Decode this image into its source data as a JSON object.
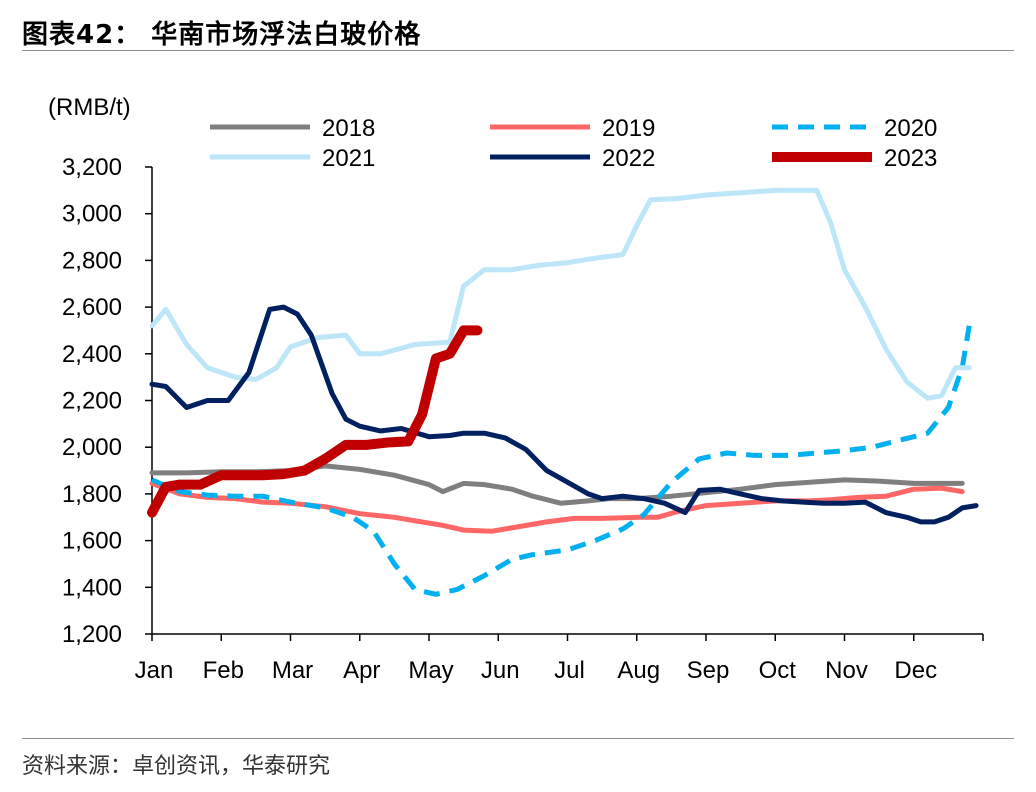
{
  "title": "图表42： 华南市场浮法白玻价格",
  "source": "资料来源：卓创资讯，华泰研究",
  "chart_data": {
    "type": "line",
    "unit_label": "(RMB/t)",
    "ylim": [
      1200,
      3200
    ],
    "yticks": [
      "1,200",
      "1,400",
      "1,600",
      "1,800",
      "2,000",
      "2,200",
      "2,400",
      "2,600",
      "2,800",
      "3,000",
      "3,200"
    ],
    "ytick_values": [
      1200,
      1400,
      1600,
      1800,
      2000,
      2200,
      2400,
      2600,
      2800,
      3000,
      3200
    ],
    "months": [
      "Jan",
      "Feb",
      "Mar",
      "Apr",
      "May",
      "Jun",
      "Jul",
      "Aug",
      "Sep",
      "Oct",
      "Nov",
      "Dec"
    ],
    "legend_position": "top",
    "series": [
      {
        "name": "2018",
        "color": "#7f7f7f",
        "width": 5,
        "dash": "",
        "points": [
          [
            0,
            1890
          ],
          [
            0.5,
            1890
          ],
          [
            1,
            1895
          ],
          [
            1.5,
            1895
          ],
          [
            2,
            1900
          ],
          [
            2.5,
            1920
          ],
          [
            3,
            1905
          ],
          [
            3.5,
            1880
          ],
          [
            4,
            1840
          ],
          [
            4.2,
            1810
          ],
          [
            4.5,
            1845
          ],
          [
            4.8,
            1840
          ],
          [
            5.2,
            1820
          ],
          [
            5.5,
            1790
          ],
          [
            5.9,
            1760
          ],
          [
            6.3,
            1770
          ],
          [
            6.6,
            1780
          ],
          [
            7,
            1780
          ],
          [
            7.5,
            1790
          ],
          [
            8,
            1805
          ],
          [
            8.5,
            1820
          ],
          [
            9,
            1840
          ],
          [
            9.5,
            1850
          ],
          [
            10,
            1860
          ],
          [
            10.5,
            1855
          ],
          [
            11,
            1845
          ],
          [
            11.7,
            1845
          ]
        ]
      },
      {
        "name": "2019",
        "color": "#ff6666",
        "width": 5,
        "dash": "",
        "points": [
          [
            0,
            1845
          ],
          [
            0.4,
            1800
          ],
          [
            0.8,
            1785
          ],
          [
            1.2,
            1780
          ],
          [
            1.6,
            1765
          ],
          [
            2,
            1760
          ],
          [
            2.5,
            1745
          ],
          [
            3,
            1715
          ],
          [
            3.5,
            1700
          ],
          [
            3.8,
            1685
          ],
          [
            4.2,
            1665
          ],
          [
            4.5,
            1645
          ],
          [
            4.9,
            1640
          ],
          [
            5.3,
            1660
          ],
          [
            5.7,
            1680
          ],
          [
            6.1,
            1695
          ],
          [
            6.5,
            1695
          ],
          [
            7,
            1700
          ],
          [
            7.3,
            1700
          ],
          [
            7.6,
            1725
          ],
          [
            8,
            1750
          ],
          [
            8.5,
            1760
          ],
          [
            9,
            1770
          ],
          [
            9.5,
            1770
          ],
          [
            9.8,
            1775
          ],
          [
            10.2,
            1785
          ],
          [
            10.6,
            1790
          ],
          [
            11,
            1820
          ],
          [
            11.4,
            1825
          ],
          [
            11.7,
            1810
          ]
        ]
      },
      {
        "name": "2020",
        "color": "#00b0f0",
        "width": 5,
        "dash": "16,10",
        "points": [
          [
            0,
            1860
          ],
          [
            0.4,
            1810
          ],
          [
            0.8,
            1795
          ],
          [
            1.2,
            1790
          ],
          [
            1.6,
            1790
          ],
          [
            2,
            1765
          ],
          [
            2.5,
            1740
          ],
          [
            2.9,
            1700
          ],
          [
            3.2,
            1640
          ],
          [
            3.5,
            1500
          ],
          [
            3.8,
            1390
          ],
          [
            4.1,
            1370
          ],
          [
            4.4,
            1390
          ],
          [
            4.8,
            1450
          ],
          [
            5.2,
            1520
          ],
          [
            5.5,
            1540
          ],
          [
            6,
            1560
          ],
          [
            6.4,
            1600
          ],
          [
            6.8,
            1650
          ],
          [
            7.1,
            1710
          ],
          [
            7.5,
            1850
          ],
          [
            7.9,
            1950
          ],
          [
            8.3,
            1975
          ],
          [
            8.7,
            1965
          ],
          [
            9.2,
            1965
          ],
          [
            9.6,
            1975
          ],
          [
            10,
            1985
          ],
          [
            10.4,
            2000
          ],
          [
            10.8,
            2030
          ],
          [
            11.2,
            2060
          ],
          [
            11.5,
            2170
          ],
          [
            11.7,
            2340
          ],
          [
            11.8,
            2520
          ]
        ]
      },
      {
        "name": "2021",
        "color": "#bde7f8",
        "width": 5,
        "dash": "",
        "points": [
          [
            0,
            2520
          ],
          [
            0.2,
            2590
          ],
          [
            0.5,
            2440
          ],
          [
            0.8,
            2340
          ],
          [
            1.2,
            2300
          ],
          [
            1.5,
            2290
          ],
          [
            1.8,
            2340
          ],
          [
            2,
            2430
          ],
          [
            2.4,
            2470
          ],
          [
            2.8,
            2480
          ],
          [
            3,
            2400
          ],
          [
            3.3,
            2400
          ],
          [
            3.8,
            2440
          ],
          [
            4.3,
            2450
          ],
          [
            4.5,
            2690
          ],
          [
            4.8,
            2760
          ],
          [
            5.2,
            2760
          ],
          [
            5.6,
            2780
          ],
          [
            6,
            2790
          ],
          [
            6.4,
            2810
          ],
          [
            6.8,
            2825
          ],
          [
            7,
            2950
          ],
          [
            7.2,
            3060
          ],
          [
            7.6,
            3065
          ],
          [
            8,
            3080
          ],
          [
            8.5,
            3090
          ],
          [
            9,
            3100
          ],
          [
            9.4,
            3100
          ],
          [
            9.6,
            3100
          ],
          [
            9.8,
            2960
          ],
          [
            10,
            2760
          ],
          [
            10.3,
            2600
          ],
          [
            10.6,
            2420
          ],
          [
            10.9,
            2280
          ],
          [
            11.2,
            2210
          ],
          [
            11.4,
            2220
          ],
          [
            11.6,
            2340
          ],
          [
            11.8,
            2340
          ]
        ]
      },
      {
        "name": "2022",
        "color": "#002060",
        "width": 5,
        "dash": "",
        "points": [
          [
            0,
            2270
          ],
          [
            0.2,
            2260
          ],
          [
            0.5,
            2170
          ],
          [
            0.8,
            2200
          ],
          [
            1.1,
            2200
          ],
          [
            1.4,
            2320
          ],
          [
            1.7,
            2590
          ],
          [
            1.9,
            2600
          ],
          [
            2.1,
            2570
          ],
          [
            2.3,
            2480
          ],
          [
            2.6,
            2230
          ],
          [
            2.8,
            2120
          ],
          [
            3,
            2090
          ],
          [
            3.3,
            2070
          ],
          [
            3.6,
            2080
          ],
          [
            4,
            2045
          ],
          [
            4.3,
            2050
          ],
          [
            4.5,
            2060
          ],
          [
            4.8,
            2060
          ],
          [
            5.1,
            2040
          ],
          [
            5.4,
            1990
          ],
          [
            5.7,
            1900
          ],
          [
            6,
            1850
          ],
          [
            6.3,
            1800
          ],
          [
            6.5,
            1780
          ],
          [
            6.8,
            1790
          ],
          [
            7.1,
            1780
          ],
          [
            7.4,
            1760
          ],
          [
            7.7,
            1720
          ],
          [
            7.9,
            1815
          ],
          [
            8.2,
            1820
          ],
          [
            8.5,
            1800
          ],
          [
            8.8,
            1780
          ],
          [
            9.1,
            1770
          ],
          [
            9.4,
            1765
          ],
          [
            9.7,
            1760
          ],
          [
            10,
            1760
          ],
          [
            10.3,
            1765
          ],
          [
            10.6,
            1720
          ],
          [
            10.9,
            1700
          ],
          [
            11.1,
            1680
          ],
          [
            11.3,
            1680
          ],
          [
            11.5,
            1700
          ],
          [
            11.7,
            1740
          ],
          [
            11.9,
            1750
          ]
        ]
      },
      {
        "name": "2023",
        "color": "#c00000",
        "width": 10,
        "dash": "",
        "points": [
          [
            0,
            1720
          ],
          [
            0.2,
            1830
          ],
          [
            0.4,
            1840
          ],
          [
            0.7,
            1840
          ],
          [
            1,
            1880
          ],
          [
            1.3,
            1880
          ],
          [
            1.6,
            1880
          ],
          [
            1.9,
            1885
          ],
          [
            2.2,
            1900
          ],
          [
            2.5,
            1950
          ],
          [
            2.8,
            2010
          ],
          [
            3.1,
            2010
          ],
          [
            3.4,
            2020
          ],
          [
            3.7,
            2025
          ],
          [
            3.9,
            2140
          ],
          [
            4.1,
            2380
          ],
          [
            4.3,
            2400
          ],
          [
            4.5,
            2500
          ],
          [
            4.7,
            2500
          ]
        ]
      }
    ]
  }
}
